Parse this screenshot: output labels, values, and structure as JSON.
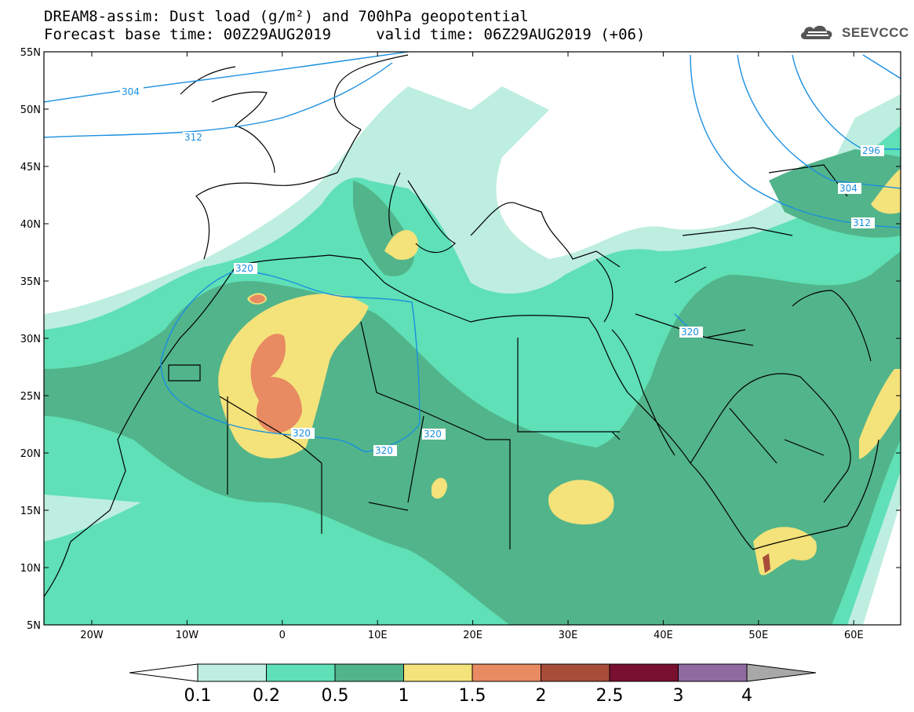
{
  "title_line1": "DREAM8-assim: Dust load (g/m²) and 700hPa geopotential",
  "title_line2": "Forecast base time: 00Z29AUG2019     valid time: 06Z29AUG2019 (+06)",
  "logo_text": "SEEVCCC",
  "map": {
    "lon_labels": [
      "20W",
      "10W",
      "0",
      "10E",
      "20E",
      "30E",
      "40E",
      "50E",
      "60E"
    ],
    "lat_labels": [
      "55N",
      "50N",
      "45N",
      "40N",
      "35N",
      "30N",
      "25N",
      "20N",
      "15N",
      "10N",
      "5N"
    ],
    "contour_labels": [
      "304",
      "312",
      "320",
      "320",
      "320",
      "320",
      "296",
      "304",
      "312",
      "320"
    ],
    "contour_color": "#1a8fe0"
  },
  "colorbar": {
    "labels": [
      "0.1",
      "0.2",
      "0.5",
      "1",
      "1.5",
      "2",
      "2.5",
      "3",
      "4"
    ],
    "colors": [
      "#bdeee0",
      "#5fe0b6",
      "#52b48a",
      "#f4e27a",
      "#e88a62",
      "#a84c3a",
      "#7a1030",
      "#8f6aa0"
    ]
  }
}
